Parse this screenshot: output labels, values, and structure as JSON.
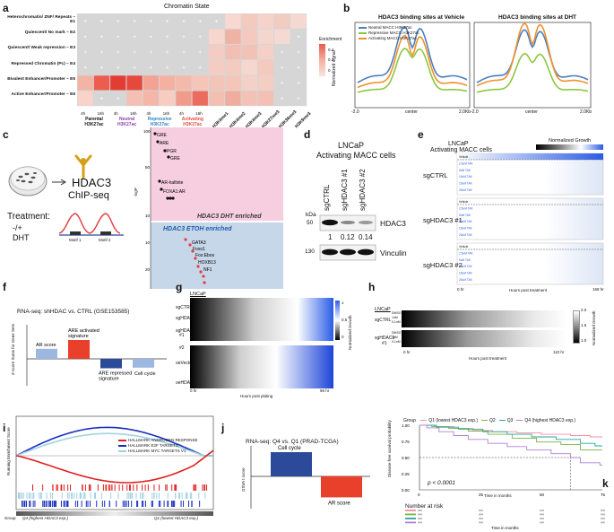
{
  "panels": {
    "a": "a",
    "b": "b",
    "c": "c",
    "d": "d",
    "e": "e",
    "f": "f",
    "g": "g",
    "h": "h",
    "i": "i",
    "j": "j",
    "k": "k"
  },
  "panel_a": {
    "title": "Chromatin State",
    "rows": [
      "Heterochromatin/ ZNF/ Repeats – E1",
      "Quiescent/ No mark – E2",
      "Quiescent/ Weak repression – E3",
      "Repressed Chromatin (Pc) – E4",
      "Bivalent Enhancer/Promoter – E5",
      "Active Enhancer/Promoter – E6"
    ],
    "time_labels": [
      "4h",
      "16h",
      "4h",
      "16h",
      "4h",
      "16h",
      "4h",
      "16h"
    ],
    "group_labels": [
      {
        "name": "Parental",
        "sub": "H3K27ac",
        "color": "#111111"
      },
      {
        "name": "Neutral",
        "sub": "H3K27ac",
        "color": "#8e44ad"
      },
      {
        "name": "Repressive",
        "sub": "H3K27ac",
        "color": "#2e86c1"
      },
      {
        "name": "Activating",
        "sub": "H3K27ac",
        "color": "#e74c3c"
      }
    ],
    "extra_cols": [
      "H3K4me1",
      "H3K4me2",
      "H3K4me3",
      "H3K27me3",
      "H3K36me3",
      "H3K9me3"
    ],
    "legend_title": "Enrichment",
    "legend_ticks": [
      "0.4",
      "0.2",
      "0"
    ]
  },
  "panel_b": {
    "left_title": "HDAC3 binding sites at Vehicle",
    "right_title": "HDAC3 binding sites at DHT",
    "ylabel": "Normalized signal",
    "x_ticks": [
      "-2.0",
      "center",
      "2.0Kb"
    ],
    "legend": [
      "Neutral MACC H3K27ac",
      "Repressive MACC H3K27ac",
      "Activating MACC H3K27ac"
    ],
    "colors": {
      "neutral": "#4a7fc1",
      "repressive": "#8dc63f",
      "activating": "#f0922b"
    }
  },
  "panel_c": {
    "chip_title": "HDAC3",
    "chip_sub": "ChIP-seq",
    "treatment": "Treatment:",
    "treatment_val": "-/+",
    "treatment_dht": "DHT",
    "motif1": "Motif 1",
    "motif2": "Motif 2",
    "ylabel": "-logP",
    "dht_label": "HDAC3 DHT enriched",
    "etoh_label": "HDAC3 ETOH enriched",
    "dht_motifs": [
      "GRE",
      "ARE",
      "PGR",
      "GRE",
      "AR-halfsite",
      "FOXA1:AR"
    ],
    "etoh_motifs": [
      "GATA3",
      "Foxo1",
      "Fox:Ebox",
      "HOXB13",
      "NF1"
    ],
    "ticks_top": [
      "100",
      "50",
      "10"
    ],
    "ticks_bottom": [
      "10",
      "20"
    ]
  },
  "panel_d": {
    "title1": "LNCaP",
    "title2": "Activating MACC cells",
    "lanes": [
      "sgCTRL",
      "sgHDAC3 #1",
      "sgHDAC3 #2"
    ],
    "kda": "kDa",
    "m50": "50",
    "m130": "130",
    "protein1": "HDAC3",
    "protein2": "Vinculin",
    "quant": [
      "1",
      "0.12",
      "0.14"
    ]
  },
  "panel_e": {
    "title1": "LNCaP",
    "title2": "Activating MACC cells",
    "legend_title": "Normalized Growth",
    "groups": [
      "sgCTRL",
      "sgHDAC3 #1",
      "sgHDAC3 #2"
    ],
    "conditions": [
      "Vehicle",
      "2.5uM TAK",
      "5uM TAK",
      "10uM TAK",
      "15uM TAK",
      "20uM TAK"
    ],
    "x_start": "0 hr",
    "x_end": "168 hr",
    "xlabel": "Hours post treatment"
  },
  "panel_f": {
    "title": "RNA-seq: shHDAC vs. CTRL (GSE153585)",
    "ylabel": "Z-score Sums for Gene Sets",
    "bars": [
      {
        "label": "AR score",
        "value": 1.6,
        "color": "#9db8e0"
      },
      {
        "label": "ARE activated signature",
        "value": 3.0,
        "color": "#e8402b"
      },
      {
        "label": "ARE repressed signature",
        "value": -1.5,
        "color": "#2c4a9a"
      },
      {
        "label": "Cell cycle",
        "value": -1.4,
        "color": "#9db8e0"
      }
    ]
  },
  "panel_g": {
    "cell": "LNCaP",
    "rows": [
      "sgCTRL",
      "sgHDAC3 #1",
      "sgHDAC3 #2",
      "oeVector",
      "oeHDAC3"
    ],
    "x_start": "0 hr",
    "x_end": "96 hr",
    "xlabel": "Hours post plating",
    "legend": "Normalized Growth",
    "ticks": [
      "1",
      "0.5",
      "0"
    ]
  },
  "panel_h": {
    "cell": "LNCaP",
    "rows": [
      "sgCTRL",
      "sgHDAC3 #1"
    ],
    "conds": [
      "DMSO",
      "1nM",
      "0.1nM"
    ],
    "x_start": "0 hr",
    "x_end": "110 hr",
    "xlabel": "Hours post treatment",
    "legend": "Normalized Growth",
    "ticks": [
      "2.0",
      "1.5",
      "1.0"
    ]
  },
  "panel_i": {
    "ylabel": "Running Enrichment Score",
    "legend": [
      "HALLMARK ANDROGEN RESPONSE",
      "HALLMARK E2F TARGETS",
      "HALLMARK MYC TARGETS V1"
    ],
    "colors": {
      "androgen": "#e02020",
      "e2f": "#1a2fbf",
      "myc": "#9fd3e0"
    },
    "group": "Group",
    "left_label": "Q4 (highest HDAC3 exp.)",
    "right_label": "Q1 (lowest HDAC3 exp.)"
  },
  "panel_j": {
    "title": "RNA-seq: Q4 vs. Q1 (PRAD-TCGA)",
    "ylabel": "GSVA t score",
    "bars": [
      {
        "label": "Cell cycle",
        "value": 3.0,
        "color": "#2c4a9a"
      },
      {
        "label": "AR score",
        "value": -2.6,
        "color": "#e8402b"
      }
    ]
  },
  "panel_k": {
    "legend_group": "Group",
    "legend": [
      {
        "label": "Q1 (lowest HDAC3 exp.)",
        "color": "#f48fa0"
      },
      {
        "label": "Q2",
        "color": "#7cb342"
      },
      {
        "label": "Q3",
        "color": "#26a69a"
      },
      {
        "label": "Q4 (highest HDAC3 exp.)",
        "color": "#b07fd8"
      }
    ],
    "ylabel": "Disease-free survival probability",
    "y_ticks": [
      "1.00",
      "0.75",
      "0.50",
      "0.25",
      "0.00"
    ],
    "x_ticks": [
      "0",
      "25",
      "50",
      "75"
    ],
    "xlabel": "Time in months",
    "pvalue": "p < 0.0001",
    "risk_title": "Number at risk"
  }
}
